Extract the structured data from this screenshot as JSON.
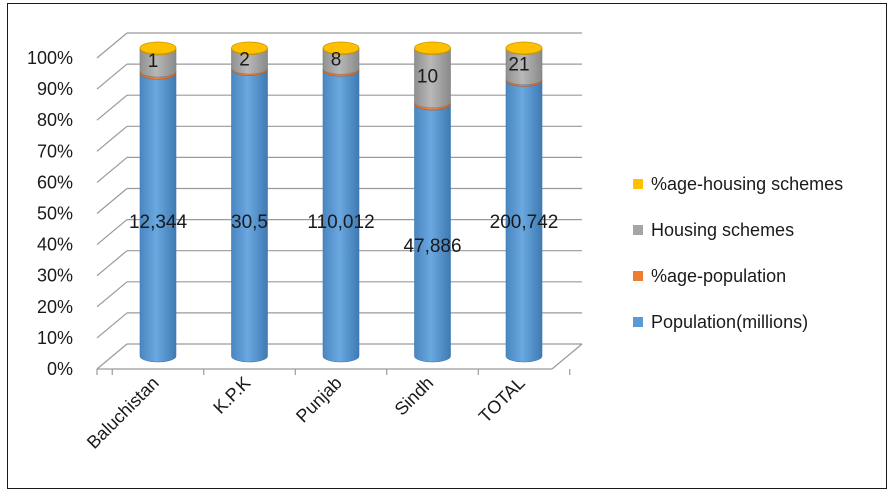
{
  "chart_data": {
    "type": "bar",
    "subtype": "stacked-100-percent-cylinder-3d",
    "categories": [
      "Baluchistan",
      "K.P.K",
      "Punjab",
      "Sindh",
      "TOTAL"
    ],
    "y_ticks": [
      "0%",
      "10%",
      "20%",
      "30%",
      "40%",
      "50%",
      "60%",
      "70%",
      "80%",
      "90%",
      "100%"
    ],
    "ylim": [
      0,
      100
    ],
    "grid": true,
    "legend_position": "right",
    "series": [
      {
        "name": "Population(millions)",
        "color": "#5b9bd5",
        "percent": [
          91.8,
          93.0,
          92.8,
          81.8,
          89.5
        ],
        "labels": [
          "12,344",
          "30,5",
          "110,012",
          "47,886",
          "200,742"
        ]
      },
      {
        "name": "%age-population",
        "color": "#ed7d31",
        "percent": [
          0.7,
          0.5,
          0.6,
          0.7,
          0.5
        ],
        "labels": [
          "",
          "",
          "",
          "",
          ""
        ]
      },
      {
        "name": "Housing schemes",
        "color": "#a5a5a5",
        "percent": [
          7.2,
          6.3,
          6.4,
          17.3,
          9.8
        ],
        "labels": [
          "1",
          "2",
          "8",
          "10",
          "21"
        ]
      },
      {
        "name": "%age-housing schemes",
        "color": "#ffc000",
        "percent": [
          0.3,
          0.2,
          0.2,
          0.2,
          0.2
        ],
        "labels": [
          "",
          "",
          "",
          "",
          ""
        ]
      }
    ]
  },
  "legend": {
    "items": [
      {
        "label": "%age-housing schemes",
        "color": "#ffc000"
      },
      {
        "label": "Housing schemes",
        "color": "#a5a5a5"
      },
      {
        "label": "%age-population",
        "color": "#ed7d31"
      },
      {
        "label": "Population(millions)",
        "color": "#5b9bd5"
      }
    ]
  }
}
